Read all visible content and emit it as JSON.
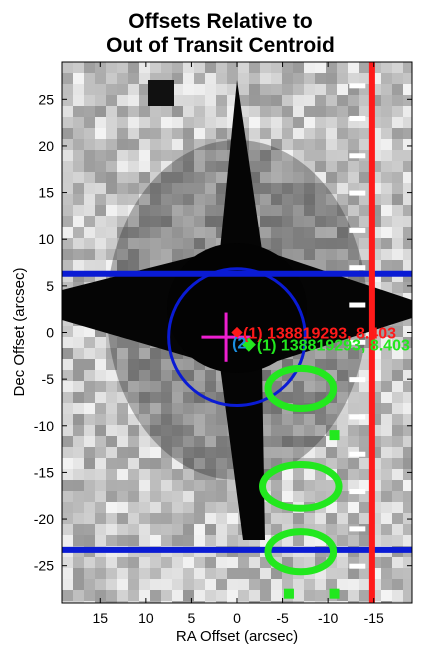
{
  "chart_data": {
    "type": "scatter",
    "title_lines": [
      "Offsets Relative to",
      "Out of Transit Centroid"
    ],
    "xlabel": "RA Offset (arcsec)",
    "ylabel": "Dec Offset (arcsec)",
    "xlim": [
      19.2,
      -19.2
    ],
    "ylim": [
      -29,
      29
    ],
    "xticks": [
      15,
      10,
      5,
      0,
      -5,
      -10,
      -15
    ],
    "yticks": [
      25,
      20,
      15,
      10,
      5,
      0,
      -5,
      -10,
      -15,
      -20,
      -25
    ],
    "grid": false,
    "colors": {
      "red": "#ff1a1a",
      "green": "#22e81e",
      "blue": "#0a1bd4",
      "magenta": "#ee1fd0",
      "white": "#ffffff"
    },
    "background_image": "grayscale pixel image of a bright star with diffraction spikes",
    "red_vertical_line_x": -14.8,
    "blue_horizontal_lines_y": [
      6.3,
      -23.3
    ],
    "blue_circle": {
      "center": [
        0,
        -0.5
      ],
      "radius": 7.5
    },
    "magenta_cross": {
      "x": 1.2,
      "y": -0.5,
      "half_width": 2.7
    },
    "red_marker": {
      "x": 0,
      "y": 0,
      "label": "(1) 138819293, 8.403"
    },
    "green_marker": {
      "x": -1.3,
      "y": -1.3,
      "label": "(1) 138819293, 8.403"
    },
    "overlap_text": "(2",
    "green_ellipses": [
      {
        "x": -7,
        "y": -6,
        "rx": 3.6,
        "ry": 2.2
      },
      {
        "x": -7,
        "y": -16.5,
        "rx": 4.2,
        "ry": 2.4
      },
      {
        "x": -7,
        "y": -23.5,
        "rx": 3.6,
        "ry": 2.2
      }
    ],
    "green_squares": [
      {
        "x": -10.7,
        "y": -11
      },
      {
        "x": -5.7,
        "y": -28
      },
      {
        "x": -10.7,
        "y": -28
      }
    ],
    "white_dashes_x": -13.2,
    "white_dashes_y": [
      26.5,
      23,
      19,
      15,
      11,
      7,
      3,
      -1,
      -5,
      -9,
      -13,
      -17,
      -21,
      -25
    ]
  }
}
